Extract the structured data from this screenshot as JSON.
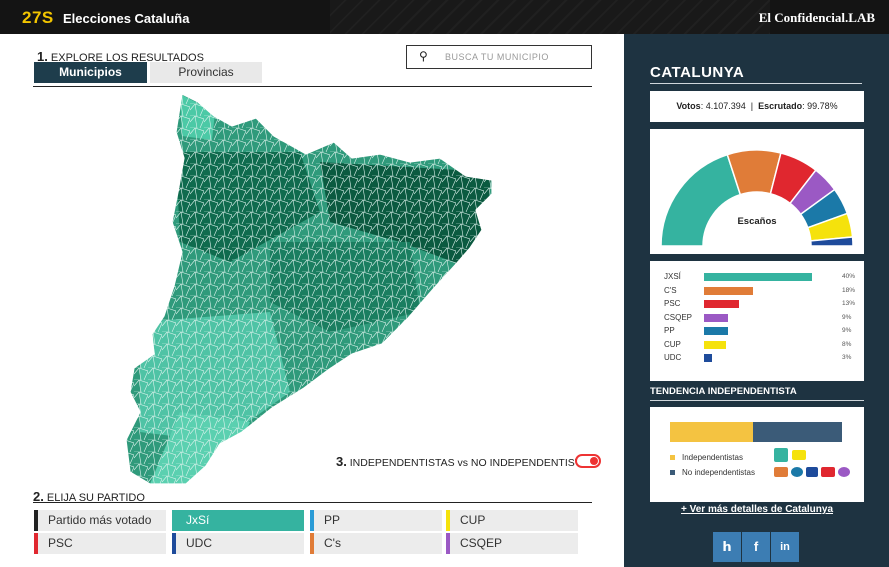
{
  "header": {
    "brand_num": "27S",
    "title": "Elecciones Cataluña",
    "right_brand": "El Confidencial.LAB"
  },
  "explore": {
    "step_num": "1.",
    "label": "EXPLORE LOS RESULTADOS",
    "tabs": [
      "Municipios",
      "Provincias"
    ],
    "search_placeholder": "BUSCA TU MUNICIPIO"
  },
  "toggle": {
    "step_num": "3.",
    "label": "INDEPENDENTISTAS vs NO INDEPENDENTISTAS",
    "on": true
  },
  "party_select": {
    "step_num": "2.",
    "label": "ELIJA SU PARTIDO",
    "items": [
      {
        "label": "Partido más votado",
        "color": "#222222",
        "selected": false
      },
      {
        "label": "JxSí",
        "color": "#35b3a0",
        "selected": true
      },
      {
        "label": "PP",
        "color": "#2a9bd6",
        "selected": false
      },
      {
        "label": "CUP",
        "color": "#f5e20c",
        "selected": false
      },
      {
        "label": "PSC",
        "color": "#e0272f",
        "selected": false
      },
      {
        "label": "UDC",
        "color": "#1e4b9b",
        "selected": false
      },
      {
        "label": "C's",
        "color": "#e07c38",
        "selected": false
      },
      {
        "label": "CSQEP",
        "color": "#9b59c4",
        "selected": false
      }
    ]
  },
  "summary": {
    "region": "CATALUNYA",
    "votes_label": "Votos",
    "votes_value": "4.107.394",
    "counted_label": "Escrutado",
    "counted_value": "99.78%",
    "seats_label": "Escaños"
  },
  "chart_data": {
    "type": "bar",
    "categories": [
      "JXSÍ",
      "C'S",
      "PSC",
      "CSQEP",
      "PP",
      "CUP",
      "UDC"
    ],
    "values": [
      40,
      18,
      13,
      9,
      9,
      8,
      3
    ],
    "colors": [
      "#35b3a0",
      "#e07c38",
      "#e0272f",
      "#9b59c4",
      "#1b79a8",
      "#f5e20c",
      "#1e4b9b"
    ],
    "value_suffix": "%"
  },
  "trend": {
    "title": "TENDENCIA INDEPENDENTISTA",
    "independentistas": 48,
    "no_independentistas": 52,
    "labels": [
      "Independentistas",
      "No independentistas"
    ],
    "colors": [
      "#f4c341",
      "#3b5b78"
    ]
  },
  "more_link": "+ Ver más detalles de Catalunya",
  "social": [
    "twitter-icon",
    "facebook-icon",
    "linkedin-icon"
  ]
}
